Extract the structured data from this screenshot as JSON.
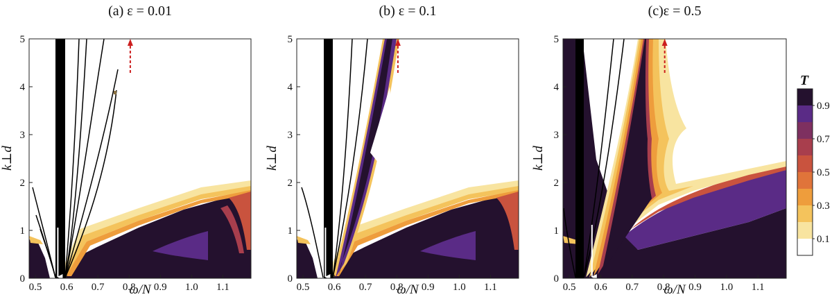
{
  "chart_data": [
    {
      "type": "heatmap",
      "title": "(a) ε = 0.01",
      "xlabel": "ω/N",
      "ylabel": "k⊥d",
      "xlim": [
        0.48,
        1.19
      ],
      "ylim": [
        0,
        5
      ],
      "xticks": [
        "0.5",
        "0.6",
        "0.7",
        "0.8",
        "0.9",
        "1.0",
        "1.1"
      ],
      "xtick_values": [
        0.5,
        0.6,
        0.7,
        0.8,
        0.9,
        1.0,
        1.1
      ],
      "yticks": [
        "0",
        "1",
        "2",
        "3",
        "4",
        "5"
      ],
      "epsilon": 0.01,
      "white_arrow_omega": 0.57,
      "red_dashed_arrow_omega": 0.8
    },
    {
      "type": "heatmap",
      "title": "(b) ε = 0.1",
      "xlabel": "ω/N",
      "ylabel": "k⊥d",
      "xlim": [
        0.48,
        1.19
      ],
      "ylim": [
        0,
        5
      ],
      "xticks": [
        "0.5",
        "0.6",
        "0.7",
        "0.8",
        "0.9",
        "1.0",
        "1.1"
      ],
      "xtick_values": [
        0.5,
        0.6,
        0.7,
        0.8,
        0.9,
        1.0,
        1.1
      ],
      "yticks": [
        "0",
        "1",
        "2",
        "3",
        "4",
        "5"
      ],
      "epsilon": 0.1,
      "white_arrow_omega": 0.57,
      "red_dashed_arrow_omega": 0.8
    },
    {
      "type": "heatmap",
      "title": "(c)ε = 0.5",
      "xlabel": "ω/N",
      "ylabel": "k⊥d",
      "xlim": [
        0.48,
        1.19
      ],
      "ylim": [
        0,
        5
      ],
      "xticks": [
        "0.5",
        "0.6",
        "0.7",
        "0.8",
        "0.9",
        "1.0",
        "1.1"
      ],
      "xtick_values": [
        0.5,
        0.6,
        0.7,
        0.8,
        0.9,
        1.0,
        1.1
      ],
      "yticks": [
        "0",
        "1",
        "2",
        "3",
        "4",
        "5"
      ],
      "epsilon": 0.5,
      "white_arrow_omega": 0.57,
      "red_dashed_arrow_omega": 0.8
    }
  ],
  "colorbar": {
    "title": "T",
    "labels": [
      "0.9",
      "0.7",
      "0.5",
      "0.3",
      "0.1"
    ],
    "label_values": [
      0.9,
      0.7,
      0.5,
      0.3,
      0.1
    ],
    "levels": [
      0,
      0.1,
      0.2,
      0.3,
      0.4,
      0.5,
      0.6,
      0.7,
      0.8,
      0.9,
      1.0
    ],
    "colors": [
      "#ffffff",
      "#f8e4a0",
      "#f4c35c",
      "#ee9d3c",
      "#e0743a",
      "#c9533e",
      "#a83e4d",
      "#7e3060",
      "#5a2b86",
      "#24112e"
    ]
  },
  "colors": {
    "white_arrow": "#ffffff",
    "red_arrow": "#cc1f1f",
    "axis": "#222222"
  }
}
